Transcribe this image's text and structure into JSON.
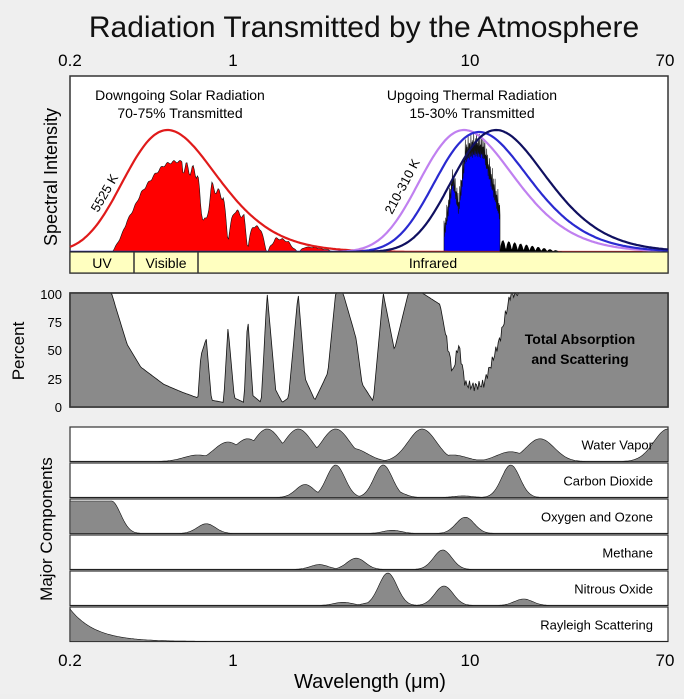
{
  "title": "Radiation Transmitted by the Atmosphere",
  "x_axis": {
    "scale": "log",
    "xlim": [
      0.2,
      70
    ],
    "ticks": [
      "0.2",
      "1",
      "10",
      "70"
    ],
    "tick_values": [
      0.2,
      1,
      10,
      70
    ],
    "label": "Wavelength (μm)"
  },
  "spectral_panel": {
    "ylabel": "Spectral Intensity",
    "solar_title": "Downgoing Solar Radiation",
    "solar_subtitle": "70-75% Transmitted",
    "solar_temp": "5525 K",
    "thermal_title": "Upgoing Thermal Radiation",
    "thermal_subtitle": "15-30% Transmitted",
    "thermal_temp": "210-310 K",
    "band_uv": "UV",
    "band_visible": "Visible",
    "band_infrared": "Infrared",
    "colors": {
      "solar_curve": "#e01a1a",
      "solar_fill": "#ff0000",
      "thermal_fill": "#0000ff",
      "thermal_curves": [
        "#c080f0",
        "#2a2ad0",
        "#101060"
      ],
      "band_bg": "#ffffc0"
    }
  },
  "absorption_panel": {
    "ylabel": "Percent",
    "label_line1": "Total Absorption",
    "label_line2": "and Scattering",
    "yticks": [
      "100",
      "75",
      "50",
      "25",
      "0"
    ],
    "fill_color": "#8a8a8a"
  },
  "components_panel": {
    "ylabel": "Major Components",
    "names": [
      "Water Vapor",
      "Carbon Dioxide",
      "Oxygen and Ozone",
      "Methane",
      "Nitrous Oxide",
      "Rayleigh Scattering"
    ]
  },
  "chart_data": {
    "type": "area",
    "title": "Radiation Transmitted by the Atmosphere",
    "xlabel": "Wavelength (μm)",
    "xscale": "log",
    "xlim": [
      0.2,
      70
    ],
    "total_absorption_percent": {
      "x": [
        0.2,
        0.3,
        0.35,
        0.4,
        0.5,
        0.6,
        0.7,
        0.72,
        0.76,
        0.8,
        0.9,
        0.94,
        1.0,
        1.1,
        1.14,
        1.2,
        1.3,
        1.38,
        1.5,
        1.6,
        1.7,
        1.87,
        2.0,
        2.2,
        2.5,
        2.7,
        2.9,
        3.3,
        3.5,
        3.9,
        4.3,
        4.8,
        5.5,
        6.3,
        7.5,
        8.5,
        9.0,
        9.6,
        10.5,
        11.5,
        12.5,
        13.5,
        15,
        20,
        30,
        70
      ],
      "y": [
        100,
        100,
        55,
        35,
        20,
        13,
        8,
        45,
        60,
        6,
        4,
        70,
        8,
        4,
        80,
        10,
        4,
        100,
        15,
        4,
        8,
        100,
        25,
        6,
        30,
        100,
        100,
        60,
        20,
        5,
        100,
        50,
        100,
        100,
        90,
        30,
        55,
        20,
        18,
        20,
        40,
        60,
        100,
        100,
        100,
        100
      ]
    },
    "components": [
      {
        "name": "Water Vapor",
        "x": [
          0.7,
          0.94,
          1.14,
          1.38,
          1.87,
          2.7,
          3.2,
          6.3,
          8.5,
          11,
          15,
          20,
          70
        ],
        "y": [
          20,
          60,
          70,
          100,
          100,
          100,
          40,
          100,
          20,
          5,
          30,
          70,
          100
        ]
      },
      {
        "name": "Carbon Dioxide",
        "x": [
          2.0,
          2.7,
          4.3,
          4.8,
          9.4,
          15
        ],
        "y": [
          40,
          100,
          100,
          20,
          5,
          100
        ]
      },
      {
        "name": "Oxygen and Ozone",
        "x": [
          0.2,
          0.3,
          0.76,
          4.7,
          9.6
        ],
        "y": [
          100,
          100,
          30,
          10,
          50
        ]
      },
      {
        "name": "Methane",
        "x": [
          2.3,
          3.3,
          7.7
        ],
        "y": [
          15,
          35,
          60
        ]
      },
      {
        "name": "Nitrous Oxide",
        "x": [
          2.9,
          3.9,
          4.5,
          7.8,
          17
        ],
        "y": [
          10,
          10,
          100,
          60,
          20
        ]
      },
      {
        "name": "Rayleigh Scattering",
        "x": [
          0.2,
          0.3,
          0.5,
          1.0,
          2.0
        ],
        "y": [
          100,
          70,
          20,
          3,
          0
        ]
      }
    ],
    "spectral_curves": {
      "solar_blackbody_temp": "5525 K",
      "thermal_blackbody_temps": "210-310 K",
      "solar_peak_um": 0.52,
      "thermal_peak_um": [
        9.5,
        11,
        13
      ]
    }
  }
}
